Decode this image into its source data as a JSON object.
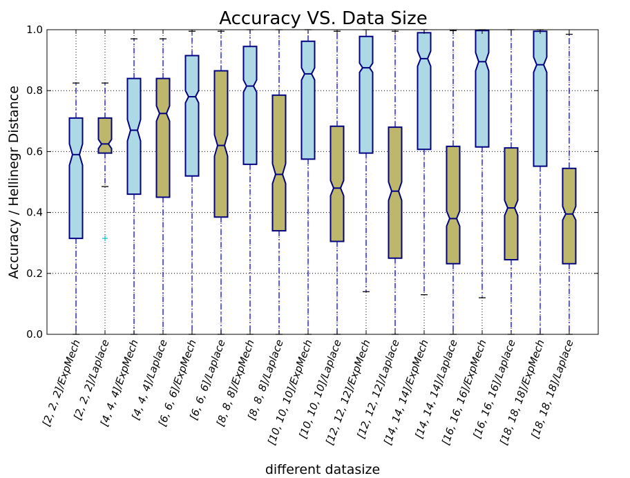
{
  "chart_data": {
    "type": "boxplot",
    "notched": true,
    "title": "Accuracy VS. Data Size",
    "xlabel": "different datasize",
    "ylabel": "Accuracy / Hellinegr Distance",
    "ylim": [
      0.0,
      1.0
    ],
    "yticks": [
      "0.0",
      "0.2",
      "0.4",
      "0.6",
      "0.8",
      "1.0"
    ],
    "grid": true,
    "colors": {
      "ExpMech": "#add8e6",
      "Laplace": "#bdb76b",
      "box_edge": "#000080",
      "whisker": "#0000ff",
      "flier": "#00bfbf"
    },
    "categories": [
      "[2, 2, 2]/ExpMech",
      "[2, 2, 2]/Laplace",
      "[4, 4, 4]/ExpMech",
      "[4, 4, 4]/Laplace",
      "[6, 6, 6]/ExpMech",
      "[6, 6, 6]/Laplace",
      "[8, 8, 8]/ExpMech",
      "[8, 8, 8]/Laplace",
      "[10, 10, 10]/ExpMech",
      "[10, 10, 10]/Laplace",
      "[12, 12, 12]/ExpMech",
      "[12, 12, 12]/Laplace",
      "[14, 14, 14]/ExpMech",
      "[14, 14, 14]/Laplace",
      "[16, 16, 16]/ExpMech",
      "[16, 16, 16]/Laplace",
      "[18, 18, 18]/ExpMech",
      "[18, 18, 18]/Laplace"
    ],
    "boxes": [
      {
        "method": "ExpMech",
        "whislo": 0.0,
        "q1": 0.315,
        "med": 0.59,
        "q3": 0.71,
        "whishi": 0.825,
        "notch": [
          0.555,
          0.625
        ],
        "fliers": []
      },
      {
        "method": "Laplace",
        "whislo": 0.485,
        "q1": 0.595,
        "med": 0.625,
        "q3": 0.71,
        "whishi": 0.825,
        "notch": [
          0.61,
          0.64
        ],
        "fliers": [
          0.315
        ]
      },
      {
        "method": "ExpMech",
        "whislo": 0.0,
        "q1": 0.46,
        "med": 0.67,
        "q3": 0.84,
        "whishi": 0.97,
        "notch": [
          0.635,
          0.705
        ],
        "fliers": []
      },
      {
        "method": "Laplace",
        "whislo": 0.0,
        "q1": 0.45,
        "med": 0.725,
        "q3": 0.84,
        "whishi": 0.97,
        "notch": [
          0.7,
          0.75
        ],
        "fliers": []
      },
      {
        "method": "ExpMech",
        "whislo": 0.0,
        "q1": 0.52,
        "med": 0.78,
        "q3": 0.915,
        "whishi": 0.995,
        "notch": [
          0.76,
          0.8
        ],
        "fliers": []
      },
      {
        "method": "Laplace",
        "whislo": 0.0,
        "q1": 0.385,
        "med": 0.62,
        "q3": 0.865,
        "whishi": 0.995,
        "notch": [
          0.585,
          0.655
        ],
        "fliers": []
      },
      {
        "method": "ExpMech",
        "whislo": 0.0,
        "q1": 0.558,
        "med": 0.815,
        "q3": 0.945,
        "whishi": 1.0,
        "notch": [
          0.795,
          0.835
        ],
        "fliers": []
      },
      {
        "method": "Laplace",
        "whislo": 0.0,
        "q1": 0.34,
        "med": 0.525,
        "q3": 0.785,
        "whishi": 1.0,
        "notch": [
          0.495,
          0.56
        ],
        "fliers": []
      },
      {
        "method": "ExpMech",
        "whislo": 0.0,
        "q1": 0.575,
        "med": 0.855,
        "q3": 0.962,
        "whishi": 1.0,
        "notch": [
          0.835,
          0.875
        ],
        "fliers": []
      },
      {
        "method": "Laplace",
        "whislo": 0.0,
        "q1": 0.305,
        "med": 0.48,
        "q3": 0.683,
        "whishi": 0.995,
        "notch": [
          0.455,
          0.505
        ],
        "fliers": []
      },
      {
        "method": "ExpMech",
        "whislo": 0.14,
        "q1": 0.595,
        "med": 0.875,
        "q3": 0.978,
        "whishi": 1.0,
        "notch": [
          0.86,
          0.89
        ],
        "fliers": []
      },
      {
        "method": "Laplace",
        "whislo": 0.0,
        "q1": 0.25,
        "med": 0.47,
        "q3": 0.68,
        "whishi": 0.995,
        "notch": [
          0.44,
          0.5
        ],
        "fliers": []
      },
      {
        "method": "ExpMech",
        "whislo": 0.13,
        "q1": 0.607,
        "med": 0.905,
        "q3": 0.99,
        "whishi": 1.0,
        "notch": [
          0.88,
          0.93
        ],
        "fliers": []
      },
      {
        "method": "Laplace",
        "whislo": 0.0,
        "q1": 0.232,
        "med": 0.38,
        "q3": 0.617,
        "whishi": 0.997,
        "notch": [
          0.355,
          0.405
        ],
        "fliers": []
      },
      {
        "method": "ExpMech",
        "whislo": 0.12,
        "q1": 0.615,
        "med": 0.895,
        "q3": 0.997,
        "whishi": 1.0,
        "notch": [
          0.865,
          0.925
        ],
        "fliers": []
      },
      {
        "method": "Laplace",
        "whislo": 0.0,
        "q1": 0.245,
        "med": 0.415,
        "q3": 0.612,
        "whishi": 1.0,
        "notch": [
          0.39,
          0.44
        ],
        "fliers": []
      },
      {
        "method": "ExpMech",
        "whislo": 0.0,
        "q1": 0.552,
        "med": 0.885,
        "q3": 0.995,
        "whishi": 1.0,
        "notch": [
          0.86,
          0.91
        ],
        "fliers": []
      },
      {
        "method": "Laplace",
        "whislo": 0.0,
        "q1": 0.232,
        "med": 0.395,
        "q3": 0.545,
        "whishi": 0.985,
        "notch": [
          0.375,
          0.42
        ],
        "fliers": []
      }
    ]
  }
}
